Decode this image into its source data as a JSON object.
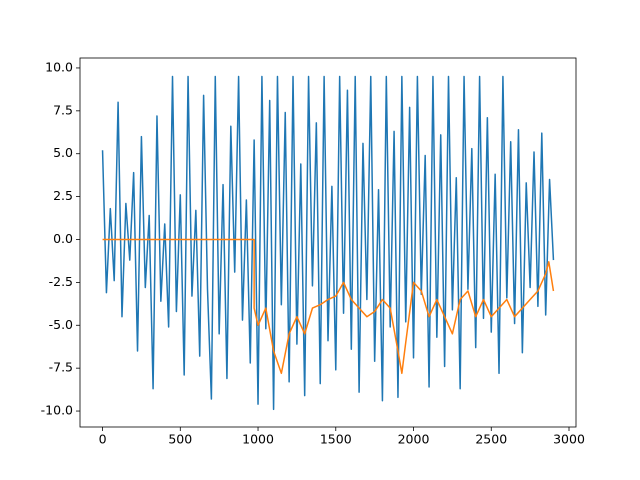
{
  "chart_data": {
    "type": "line",
    "xlim": [
      -145,
      3045
    ],
    "ylim": [
      -10.93,
      10.58
    ],
    "xticks": [
      0,
      500,
      1000,
      1500,
      2000,
      2500,
      3000
    ],
    "yticks": [
      {
        "value": -10,
        "label": "-10.0"
      },
      {
        "value": -7.5,
        "label": "-7.5"
      },
      {
        "value": -5,
        "label": "-5.0"
      },
      {
        "value": -2.5,
        "label": "-2.5"
      },
      {
        "value": 0,
        "label": "0.0"
      },
      {
        "value": 2.5,
        "label": "2.5"
      },
      {
        "value": 5,
        "label": "5.0"
      },
      {
        "value": 7.5,
        "label": "7.5"
      },
      {
        "value": 10,
        "label": "10.0"
      }
    ],
    "series": [
      {
        "color": "#1f77b4",
        "x": [
          0,
          25,
          50,
          75,
          100,
          125,
          150,
          175,
          200,
          225,
          250,
          275,
          300,
          325,
          350,
          375,
          400,
          425,
          450,
          475,
          500,
          525,
          550,
          575,
          600,
          625,
          650,
          675,
          700,
          725,
          750,
          775,
          800,
          825,
          850,
          875,
          900,
          925,
          950,
          975,
          1000,
          1025,
          1050,
          1075,
          1100,
          1125,
          1150,
          1175,
          1200,
          1225,
          1250,
          1275,
          1300,
          1325,
          1350,
          1375,
          1400,
          1425,
          1450,
          1475,
          1500,
          1525,
          1550,
          1575,
          1600,
          1625,
          1650,
          1675,
          1700,
          1725,
          1750,
          1775,
          1800,
          1825,
          1850,
          1875,
          1900,
          1925,
          1950,
          1975,
          2000,
          2025,
          2050,
          2075,
          2100,
          2125,
          2150,
          2175,
          2200,
          2225,
          2250,
          2275,
          2300,
          2325,
          2350,
          2375,
          2400,
          2425,
          2450,
          2475,
          2500,
          2525,
          2550,
          2575,
          2600,
          2625,
          2650,
          2675,
          2700,
          2725,
          2750,
          2775,
          2800,
          2825,
          2850,
          2875,
          2900
        ],
        "values": [
          5.2,
          -3.1,
          1.8,
          -2.4,
          8.0,
          -4.5,
          2.1,
          -1.2,
          3.9,
          -6.5,
          6.0,
          -2.8,
          1.4,
          -8.7,
          7.2,
          -3.6,
          0.9,
          -5.1,
          9.5,
          -4.2,
          2.6,
          -7.9,
          9.5,
          -3.3,
          1.7,
          -6.8,
          8.4,
          -2.9,
          -9.3,
          9.5,
          -5.5,
          3.2,
          -8.1,
          6.6,
          -1.9,
          9.5,
          -4.7,
          2.3,
          -7.2,
          5.8,
          -9.6,
          9.5,
          -5.2,
          8.1,
          -9.9,
          9.5,
          -3.8,
          7.4,
          -8.3,
          9.5,
          -6.1,
          4.4,
          -9.1,
          9.5,
          -2.7,
          6.8,
          -8.4,
          9.5,
          -5.9,
          3.1,
          -7.6,
          9.5,
          -4.3,
          8.7,
          -6.4,
          9.5,
          -8.9,
          5.6,
          -3.5,
          9.5,
          -7.1,
          2.9,
          -9.4,
          9.5,
          -5.1,
          6.3,
          -9.2,
          9.5,
          -4.8,
          7.7,
          -6.9,
          9.5,
          -3.2,
          4.9,
          -8.6,
          9.5,
          -5.7,
          6.1,
          -7.4,
          9.5,
          -4.1,
          3.6,
          -8.7,
          9.5,
          -2.9,
          5.3,
          -6.3,
          9.5,
          -4.6,
          7.1,
          -5.4,
          3.8,
          -7.8,
          9.5,
          -3.4,
          5.7,
          -4.9,
          6.4,
          -6.6,
          3.3,
          -2.8,
          5.1,
          -3.9,
          6.2,
          -4.4,
          3.5,
          -1.2
        ]
      },
      {
        "color": "#ff7f0e",
        "x": [
          0,
          975,
          975,
          1000,
          1050,
          1100,
          1150,
          1200,
          1250,
          1300,
          1350,
          1400,
          1450,
          1500,
          1550,
          1600,
          1650,
          1700,
          1750,
          1800,
          1850,
          1900,
          1925,
          1950,
          2000,
          2050,
          2100,
          2150,
          2200,
          2250,
          2300,
          2350,
          2400,
          2450,
          2500,
          2550,
          2600,
          2650,
          2700,
          2750,
          2800,
          2850,
          2870,
          2900
        ],
        "values": [
          0,
          0,
          -4,
          -5,
          -4,
          -6.5,
          -7.8,
          -5.5,
          -4.5,
          -5.5,
          -4,
          -3.8,
          -3.5,
          -3.3,
          -2.5,
          -3.5,
          -4,
          -4.5,
          -4.2,
          -3.5,
          -4,
          -6.5,
          -7.8,
          -6,
          -2.5,
          -3,
          -4.5,
          -3.5,
          -4.5,
          -5.5,
          -3.5,
          -3,
          -4.5,
          -3.5,
          -4.5,
          -4,
          -3.5,
          -4.5,
          -4,
          -3.5,
          -3,
          -2,
          -1.3,
          -3
        ]
      }
    ]
  }
}
